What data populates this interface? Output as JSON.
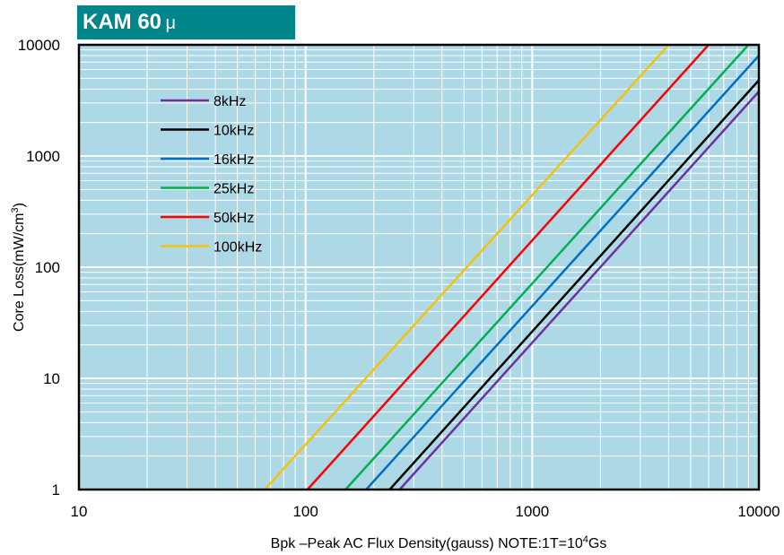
{
  "banner": {
    "title_bold": "KAM 60",
    "title_unit": "μ"
  },
  "chart_data": {
    "type": "line",
    "x_scale": "log",
    "y_scale": "log",
    "xlim": [
      10,
      10000
    ],
    "ylim": [
      1,
      10000
    ],
    "x_ticks": [
      "10",
      "100",
      "1000",
      "10000"
    ],
    "y_ticks": [
      "1",
      "10",
      "100",
      "1000",
      "10000"
    ],
    "ylabel": "Core Loss(mW/cm",
    "ylabel_sup": "3",
    "ylabel_end": ")",
    "xlabel": "Bpk –Peak AC Flux Density(gauss)   NOTE:1T=10",
    "xlabel_sup": "4",
    "xlabel_end": "Gs",
    "background_color": "#add8e6",
    "grid": true,
    "legend_position": "upper-left",
    "series": [
      {
        "name": "8kHz",
        "color": "#7030a0",
        "points": [
          [
            260,
            1
          ],
          [
            10000,
            3800
          ]
        ]
      },
      {
        "name": "10kHz",
        "color": "#000000",
        "points": [
          [
            235,
            1
          ],
          [
            10000,
            4800
          ]
        ]
      },
      {
        "name": "16kHz",
        "color": "#0070c0",
        "points": [
          [
            185,
            1
          ],
          [
            10000,
            8000
          ]
        ]
      },
      {
        "name": "25kHz",
        "color": "#00b050",
        "points": [
          [
            150,
            1
          ],
          [
            9000,
            10000
          ]
        ]
      },
      {
        "name": "50kHz",
        "color": "#ff0000",
        "points": [
          [
            102,
            1
          ],
          [
            6000,
            10000
          ]
        ]
      },
      {
        "name": "100kHz",
        "color": "#f4c20d",
        "points": [
          [
            66,
            1
          ],
          [
            4000,
            10000
          ]
        ]
      }
    ]
  }
}
